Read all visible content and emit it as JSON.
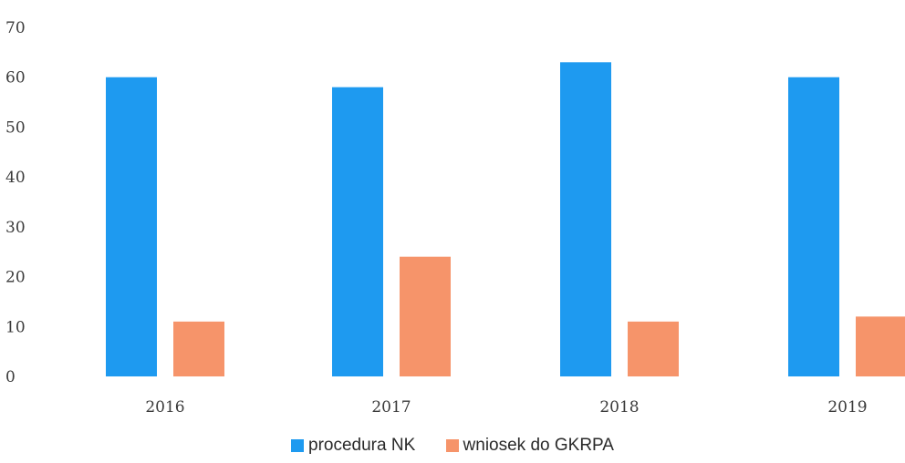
{
  "chart_data": {
    "type": "bar",
    "categories": [
      "2016",
      "2017",
      "2018",
      "2019"
    ],
    "series": [
      {
        "name": "procedura NK",
        "values": [
          60,
          58,
          63,
          60
        ],
        "color": "#1E9AF0"
      },
      {
        "name": "wniosek do GKRPA",
        "values": [
          11,
          24,
          11,
          12
        ],
        "color": "#F6946A"
      }
    ],
    "ylim": [
      0,
      70
    ],
    "yticks": [
      0,
      10,
      20,
      30,
      40,
      50,
      60,
      70
    ],
    "grid": false,
    "legend_position": "bottom"
  }
}
